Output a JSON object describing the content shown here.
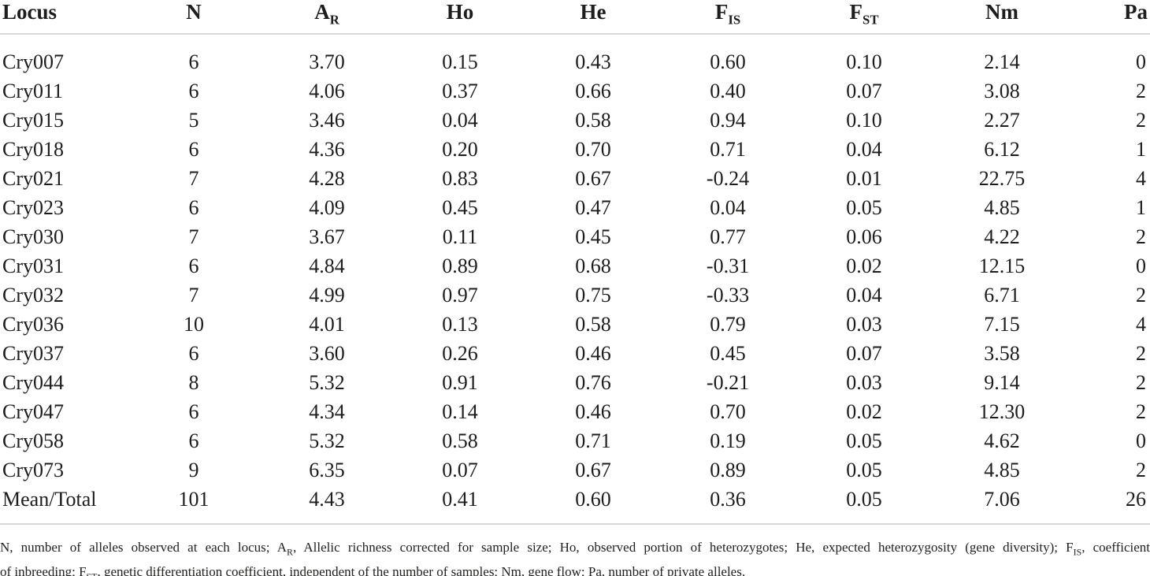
{
  "page": {
    "background_color": "#ffffff",
    "text_color": "#1d1d1b",
    "rule_color": "#d8d8d8"
  },
  "table": {
    "headers": [
      {
        "main": "Locus",
        "sub": ""
      },
      {
        "main": "N",
        "sub": ""
      },
      {
        "main": "A",
        "sub": "R"
      },
      {
        "main": "Ho",
        "sub": ""
      },
      {
        "main": "He",
        "sub": ""
      },
      {
        "main": "F",
        "sub": "IS"
      },
      {
        "main": "F",
        "sub": "ST"
      },
      {
        "main": "Nm",
        "sub": ""
      },
      {
        "main": "Pa",
        "sub": ""
      }
    ],
    "rows": [
      [
        "Cry007",
        "6",
        "3.70",
        "0.15",
        "0.43",
        "0.60",
        "0.10",
        "2.14",
        "0"
      ],
      [
        "Cry011",
        "6",
        "4.06",
        "0.37",
        "0.66",
        "0.40",
        "0.07",
        "3.08",
        "2"
      ],
      [
        "Cry015",
        "5",
        "3.46",
        "0.04",
        "0.58",
        "0.94",
        "0.10",
        "2.27",
        "2"
      ],
      [
        "Cry018",
        "6",
        "4.36",
        "0.20",
        "0.70",
        "0.71",
        "0.04",
        "6.12",
        "1"
      ],
      [
        "Cry021",
        "7",
        "4.28",
        "0.83",
        "0.67",
        "-0.24",
        "0.01",
        "22.75",
        "4"
      ],
      [
        "Cry023",
        "6",
        "4.09",
        "0.45",
        "0.47",
        "0.04",
        "0.05",
        "4.85",
        "1"
      ],
      [
        "Cry030",
        "7",
        "3.67",
        "0.11",
        "0.45",
        "0.77",
        "0.06",
        "4.22",
        "2"
      ],
      [
        "Cry031",
        "6",
        "4.84",
        "0.89",
        "0.68",
        "-0.31",
        "0.02",
        "12.15",
        "0"
      ],
      [
        "Cry032",
        "7",
        "4.99",
        "0.97",
        "0.75",
        "-0.33",
        "0.04",
        "6.71",
        "2"
      ],
      [
        "Cry036",
        "10",
        "4.01",
        "0.13",
        "0.58",
        "0.79",
        "0.03",
        "7.15",
        "4"
      ],
      [
        "Cry037",
        "6",
        "3.60",
        "0.26",
        "0.46",
        "0.45",
        "0.07",
        "3.58",
        "2"
      ],
      [
        "Cry044",
        "8",
        "5.32",
        "0.91",
        "0.76",
        "-0.21",
        "0.03",
        "9.14",
        "2"
      ],
      [
        "Cry047",
        "6",
        "4.34",
        "0.14",
        "0.46",
        "0.70",
        "0.02",
        "12.30",
        "2"
      ],
      [
        "Cry058",
        "6",
        "5.32",
        "0.58",
        "0.71",
        "0.19",
        "0.05",
        "4.62",
        "0"
      ],
      [
        "Cry073",
        "9",
        "6.35",
        "0.07",
        "0.67",
        "0.89",
        "0.05",
        "4.85",
        "2"
      ],
      [
        "Mean/Total",
        "101",
        "4.43",
        "0.41",
        "0.60",
        "0.36",
        "0.05",
        "7.06",
        "26"
      ]
    ]
  },
  "footnote": {
    "line1": [
      {
        "text": "N, number of alleles observed at each locus; A"
      },
      {
        "sub": "R"
      },
      {
        "text": ", Allelic richness corrected for sample size; Ho, observed portion of heterozygotes; He, expected heterozygosity (gene diversity); F"
      },
      {
        "sub": "IS"
      },
      {
        "text": ", coefficient"
      }
    ],
    "line2": [
      {
        "text": "of inbreeding; F"
      },
      {
        "sub": "ST"
      },
      {
        "text": ", genetic differentiation coefficient, independent of the number of samples; Nm, gene flow; Pa, number of private alleles."
      }
    ]
  }
}
